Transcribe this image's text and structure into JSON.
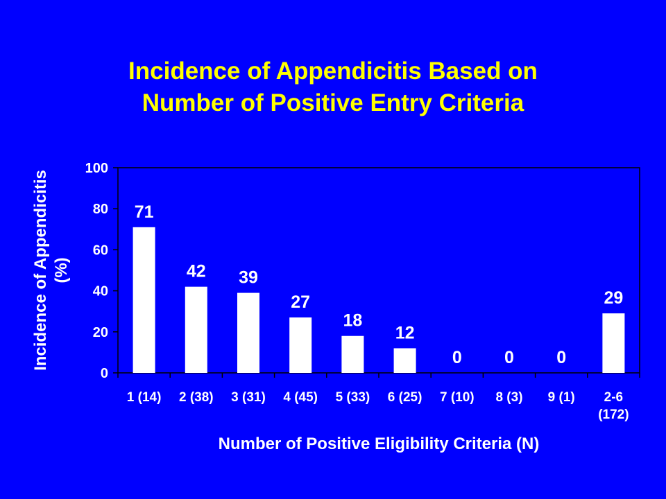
{
  "title": {
    "line1": "Incidence of Appendicitis Based on",
    "line2": "Number of Positive Entry Criteria"
  },
  "colors": {
    "background": "#0000ff",
    "title": "#ffff00",
    "bars": "#ffffff",
    "text": "#ffffff"
  },
  "chart_data": {
    "type": "bar",
    "categories": [
      [
        "1 (14)"
      ],
      [
        "2 (38)"
      ],
      [
        "3 (31)"
      ],
      [
        "4 (45)"
      ],
      [
        "5 (33)"
      ],
      [
        "6 (25)"
      ],
      [
        "7 (10)"
      ],
      [
        "8 (3)"
      ],
      [
        "9 (1)"
      ],
      [
        "2-6",
        "(172)"
      ]
    ],
    "values": [
      71,
      42,
      39,
      27,
      18,
      12,
      0,
      0,
      0,
      29
    ],
    "data_labels": [
      "71",
      "42",
      "39",
      "27",
      "18",
      "12",
      "0",
      "0",
      "0",
      "29"
    ],
    "xlabel": "Number of Positive Eligibility Criteria (N)",
    "ylabel": [
      "Incidence of Appendicitis",
      "(%)"
    ],
    "ylim": [
      0,
      100
    ],
    "yticks": [
      0,
      20,
      40,
      60,
      80,
      100
    ],
    "grid": false,
    "legend": "none"
  }
}
